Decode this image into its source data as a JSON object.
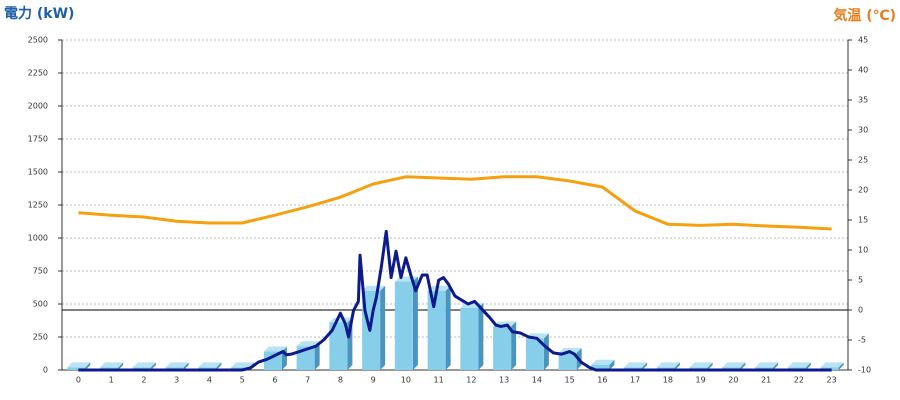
{
  "chart_data": {
    "type": "combo",
    "title": "電力 (kW)",
    "y2_title": "気温 (℃)",
    "categories": [
      "0",
      "1",
      "2",
      "3",
      "4",
      "5",
      "6",
      "7",
      "8",
      "9",
      "10",
      "11",
      "12",
      "13",
      "14",
      "15",
      "16",
      "17",
      "18",
      "19",
      "20",
      "21",
      "22",
      "23"
    ],
    "ylim": [
      0,
      2500
    ],
    "yticks": [
      0,
      250,
      500,
      750,
      1000,
      1250,
      1500,
      1750,
      2000,
      2250,
      2500
    ],
    "y2lim": [
      -10,
      45
    ],
    "y2ticks": [
      -10,
      -5,
      0,
      5,
      10,
      15,
      20,
      25,
      30,
      35,
      40,
      45
    ],
    "grid": true,
    "y2_zero_line": true,
    "series": [
      {
        "type": "bar3d",
        "color": "#87ceeb",
        "side_color": "#4a94bd",
        "values": [
          20,
          20,
          20,
          20,
          20,
          20,
          140,
          180,
          360,
          600,
          670,
          600,
          470,
          330,
          240,
          130,
          40,
          20,
          20,
          20,
          20,
          20,
          20,
          20
        ]
      },
      {
        "type": "line",
        "color": "#0d1a8c",
        "x": [
          0,
          5,
          5.25,
          5.5,
          5.75,
          6,
          6.25,
          6.35,
          6.5,
          6.75,
          7,
          7.25,
          7.5,
          7.75,
          8,
          8.15,
          8.25,
          8.4,
          8.55,
          8.6,
          8.75,
          8.9,
          9,
          9.1,
          9.25,
          9.4,
          9.55,
          9.7,
          9.85,
          10,
          10.15,
          10.3,
          10.5,
          10.65,
          10.85,
          11,
          11.15,
          11.3,
          11.5,
          11.7,
          11.9,
          12.1,
          12.25,
          12.4,
          12.55,
          12.75,
          12.9,
          13.1,
          13.25,
          13.5,
          13.75,
          14,
          14.25,
          14.5,
          14.75,
          15,
          15.15,
          15.35,
          15.6,
          15.8,
          16,
          23
        ],
        "values": [
          0,
          0,
          15,
          60,
          80,
          110,
          140,
          115,
          120,
          140,
          160,
          180,
          230,
          300,
          430,
          350,
          250,
          450,
          520,
          870,
          450,
          300,
          450,
          550,
          780,
          1050,
          700,
          900,
          700,
          850,
          720,
          600,
          720,
          720,
          480,
          680,
          700,
          650,
          560,
          530,
          500,
          520,
          480,
          440,
          400,
          340,
          330,
          340,
          290,
          280,
          250,
          240,
          180,
          130,
          120,
          140,
          120,
          60,
          20,
          0,
          0,
          0
        ]
      },
      {
        "type": "line",
        "axis": "y2",
        "color": "#f5a00f",
        "values": [
          16.2,
          15.8,
          15.5,
          14.8,
          14.5,
          14.5,
          15.8,
          17.2,
          18.8,
          21,
          22.2,
          22,
          21.8,
          22.2,
          22.2,
          21.5,
          20.5,
          16.5,
          14.3,
          14.1,
          14.3,
          14,
          13.8,
          13.5
        ]
      }
    ]
  }
}
